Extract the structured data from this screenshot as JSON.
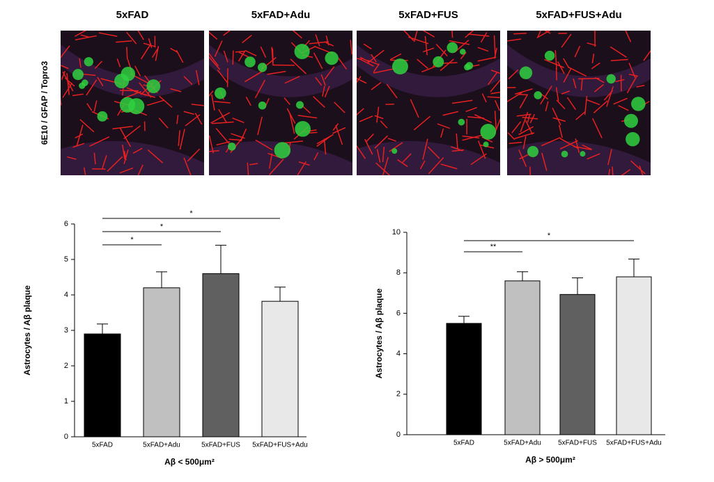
{
  "panels": {
    "titles": [
      "5xFAD",
      "5xFAD+Adu",
      "5xFAD+FUS",
      "5xFAD+FUS+Adu"
    ],
    "stain_label": "6E10 / GFAP / Topro3"
  },
  "chart_data": [
    {
      "type": "bar",
      "ylabel": "Astrocytes / Aβ plaque",
      "xlabel": "Aβ < 500μm²",
      "categories": [
        "5xFAD",
        "5xFAD+Adu",
        "5xFAD+FUS",
        "5xFAD+FUS+Adu"
      ],
      "values": [
        2.9,
        4.2,
        4.6,
        3.82
      ],
      "errors": [
        0.28,
        0.45,
        0.8,
        0.4
      ],
      "colors": [
        "#000000",
        "#c0c0c0",
        "#606060",
        "#e8e8e8"
      ],
      "ylim": [
        0,
        6
      ],
      "yticks": [
        0,
        1,
        2,
        3,
        4,
        5,
        6
      ],
      "annotations": [
        {
          "label": "*",
          "between": [
            "5xFAD",
            "5xFAD+Adu"
          ]
        },
        {
          "label": "*",
          "between": [
            "5xFAD",
            "5xFAD+FUS"
          ]
        },
        {
          "label": "*",
          "between": [
            "5xFAD",
            "5xFAD+FUS+Adu"
          ]
        }
      ]
    },
    {
      "type": "bar",
      "ylabel": "Astrocytes / Aβ plaque",
      "xlabel": "Aβ > 500μm²",
      "categories": [
        "5xFAD",
        "5xFAD+Adu",
        "5xFAD+FUS",
        "5xFAD+FUS+Adu"
      ],
      "values": [
        5.5,
        7.6,
        6.93,
        7.8
      ],
      "errors": [
        0.35,
        0.45,
        0.82,
        0.88
      ],
      "colors": [
        "#000000",
        "#c0c0c0",
        "#606060",
        "#e8e8e8"
      ],
      "ylim": [
        0,
        10
      ],
      "yticks": [
        0,
        2,
        4,
        6,
        8,
        10
      ],
      "annotations": [
        {
          "label": "**",
          "between": [
            "5xFAD",
            "5xFAD+Adu"
          ]
        },
        {
          "label": "*",
          "between": [
            "5xFAD",
            "5xFAD+FUS+Adu"
          ]
        }
      ]
    }
  ]
}
